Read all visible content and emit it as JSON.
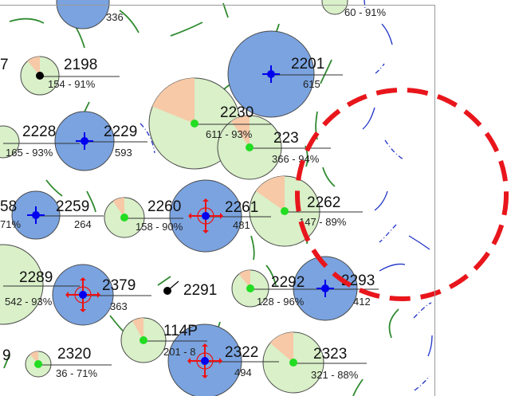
{
  "colors": {
    "green_bubble": "#d9f0c8",
    "blue_bubble": "#7aa3e0",
    "wedge": "#f7c9a7",
    "green_dot": "#22dd22",
    "blue_marker": "#0000ee",
    "red_arrow": "#ee1111",
    "green_line": "#2f8a2f",
    "blue_line": "#1f32c8",
    "dashed_circle": "#e8161c"
  },
  "wells": [
    {
      "id": "",
      "value": "336",
      "bubble": "blue",
      "marker": "none"
    },
    {
      "id": "",
      "value": "60 - 91%",
      "bubble": "green",
      "marker": "none"
    },
    {
      "id": "7",
      "value": "",
      "bubble": "none",
      "marker": "none"
    },
    {
      "id": "2198",
      "value": "154 - 91%",
      "bubble": "green",
      "marker": "black-dot"
    },
    {
      "id": "2201",
      "value": "615",
      "bubble": "blue",
      "marker": "blue-cross"
    },
    {
      "id": "2230",
      "value": "611 - 93%",
      "bubble": "green",
      "marker": "green-dot"
    },
    {
      "id": "2228",
      "value": "165 - 93%",
      "bubble": "green",
      "marker": "none"
    },
    {
      "id": "2229",
      "value": "593",
      "bubble": "blue",
      "marker": "blue-cross"
    },
    {
      "id": "223",
      "value": "366 - 94%",
      "bubble": "green",
      "marker": "green-dot"
    },
    {
      "id": "58",
      "value": "71%",
      "bubble": "blue",
      "marker": "blue-cross"
    },
    {
      "id": "2259",
      "value": "264",
      "bubble": "none",
      "marker": "none"
    },
    {
      "id": "2260",
      "value": "158 - 90%",
      "bubble": "green",
      "marker": "green-dot"
    },
    {
      "id": "2261",
      "value": "481",
      "bubble": "blue",
      "marker": "injector"
    },
    {
      "id": "2262",
      "value": "147 - 89%",
      "bubble": "green",
      "marker": "green-dot"
    },
    {
      "id": "2289",
      "value": "542 - 93%",
      "bubble": "green",
      "marker": "none"
    },
    {
      "id": "2379",
      "value": "363",
      "bubble": "blue",
      "marker": "injector"
    },
    {
      "id": "2291",
      "value": "",
      "bubble": "none",
      "marker": "black-dot"
    },
    {
      "id": "2292",
      "value": "128 - 96%",
      "bubble": "green",
      "marker": "green-dot"
    },
    {
      "id": "2293",
      "value": "412",
      "bubble": "blue",
      "marker": "blue-cross"
    },
    {
      "id": "9",
      "value": "",
      "bubble": "none",
      "marker": "none"
    },
    {
      "id": "2320",
      "value": "36 - 71%",
      "bubble": "green",
      "marker": "green-dot"
    },
    {
      "id": "114P",
      "value": "201 - 8",
      "bubble": "green",
      "marker": "green-dot"
    },
    {
      "id": "2322",
      "value": "494",
      "bubble": "blue",
      "marker": "injector"
    },
    {
      "id": "2323",
      "value": "321 - 88%",
      "bubble": "green",
      "marker": "green-dot"
    }
  ]
}
